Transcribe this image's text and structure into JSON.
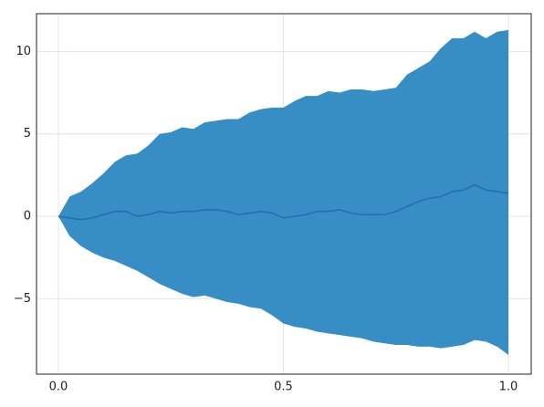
{
  "chart_data": {
    "type": "band",
    "x": [
      0,
      0.025,
      0.05,
      0.075,
      0.1,
      0.125,
      0.15,
      0.175,
      0.2,
      0.225,
      0.25,
      0.275,
      0.3,
      0.325,
      0.35,
      0.375,
      0.4,
      0.425,
      0.45,
      0.475,
      0.5,
      0.525,
      0.55,
      0.575,
      0.6,
      0.625,
      0.65,
      0.675,
      0.7,
      0.725,
      0.75,
      0.775,
      0.8,
      0.825,
      0.85,
      0.875,
      0.9,
      0.925,
      0.95,
      0.975,
      1.0
    ],
    "band": {
      "color": "#368ec4",
      "upper": [
        0,
        1.2,
        1.5,
        2.0,
        2.6,
        3.3,
        3.7,
        3.8,
        4.3,
        5.0,
        5.1,
        5.4,
        5.3,
        5.7,
        5.8,
        5.9,
        5.9,
        6.3,
        6.5,
        6.6,
        6.6,
        7.0,
        7.3,
        7.3,
        7.6,
        7.5,
        7.7,
        7.7,
        7.6,
        7.7,
        7.8,
        8.6,
        9.0,
        9.4,
        10.2,
        10.8,
        10.8,
        11.2,
        10.8,
        11.2,
        11.3
      ],
      "lower": [
        0,
        -1.2,
        -1.8,
        -2.2,
        -2.5,
        -2.7,
        -3.0,
        -3.3,
        -3.7,
        -4.1,
        -4.4,
        -4.7,
        -4.9,
        -4.8,
        -5.0,
        -5.2,
        -5.3,
        -5.5,
        -5.6,
        -6.0,
        -6.5,
        -6.7,
        -6.8,
        -7.0,
        -7.1,
        -7.2,
        -7.3,
        -7.4,
        -7.6,
        -7.7,
        -7.8,
        -7.8,
        -7.9,
        -7.9,
        -8.0,
        -7.9,
        -7.8,
        -7.5,
        -7.6,
        -7.9,
        -8.4
      ]
    },
    "series": [
      {
        "color": "#1f6fae",
        "values": [
          0,
          -0.1,
          -0.2,
          -0.1,
          0.1,
          0.3,
          0.3,
          0.0,
          0.1,
          0.3,
          0.2,
          0.3,
          0.3,
          0.4,
          0.4,
          0.3,
          0.1,
          0.2,
          0.3,
          0.2,
          -0.1,
          0.0,
          0.1,
          0.3,
          0.3,
          0.4,
          0.2,
          0.1,
          0.1,
          0.1,
          0.3,
          0.6,
          0.9,
          1.1,
          1.2,
          1.5,
          1.6,
          1.9,
          1.6,
          1.5,
          1.4
        ]
      }
    ],
    "xlim": [
      -0.0487,
      1.0507
    ],
    "ylim": [
      -9.57,
      12.29
    ],
    "xticks": [
      {
        "value": 0,
        "label": "0.0"
      },
      0.5,
      {
        "value": 1,
        "label": "1.0"
      }
    ],
    "yticks": [
      {
        "value": -5,
        "label": "−5"
      },
      0,
      5,
      10
    ],
    "grid": true
  }
}
